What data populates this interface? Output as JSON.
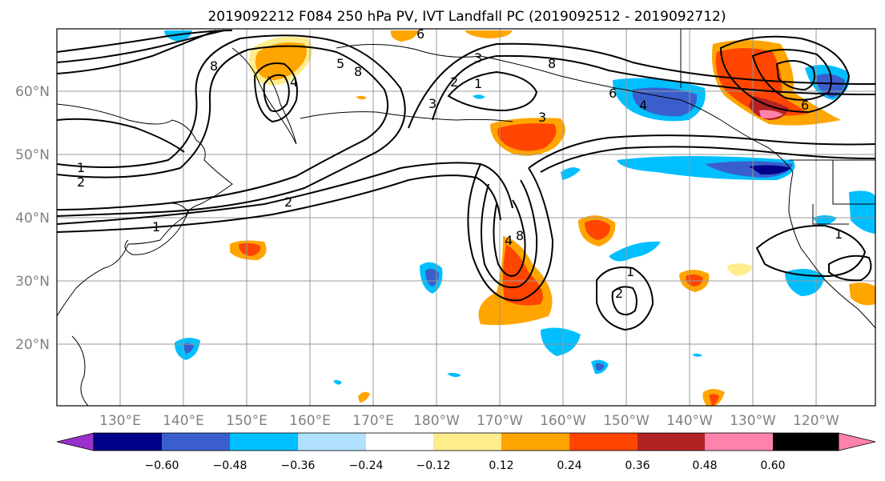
{
  "title": "2019092212 F084 250 hPa PV, IVT Landfall PC (2019092512 - 2019092712)",
  "map": {
    "lat_labels": [
      "60°N",
      "50°N",
      "40°N",
      "30°N",
      "20°N"
    ],
    "lon_labels": [
      "130°E",
      "140°E",
      "150°E",
      "160°E",
      "170°E",
      "180°W",
      "170°W",
      "160°W",
      "150°W",
      "140°W",
      "130°W",
      "120°W"
    ],
    "contour_labels": [
      "6",
      "8",
      "4",
      "5",
      "8",
      "3",
      "2",
      "1",
      "3",
      "8",
      "6",
      "4",
      "6",
      "1",
      "2",
      "2",
      "1",
      "4",
      "8",
      "1",
      "2",
      "1",
      "3"
    ]
  },
  "colorbar": {
    "colors": [
      "#9932CC",
      "#00008B",
      "#3A5FCD",
      "#00BFFF",
      "#B0E2FF",
      "#FFFFFF",
      "#FFEC8B",
      "#FFA500",
      "#FF4500",
      "#B22222",
      "#FF82AB"
    ],
    "tick_labels": [
      "−0.60",
      "−0.48",
      "−0.36",
      "−0.24",
      "−0.12",
      "0.12",
      "0.24",
      "0.36",
      "0.48",
      "0.60"
    ]
  },
  "shading_colors": {
    "pos_light": "#FFEC8B",
    "pos_mid": "#FFA500",
    "pos_strong": "#FF4500",
    "pos_max": "#B22222",
    "pos_extreme": "#FF82AB",
    "neg_light": "#B0E2FF",
    "neg_mid": "#00BFFF",
    "neg_strong": "#3A5FCD",
    "neg_max": "#00008B"
  }
}
